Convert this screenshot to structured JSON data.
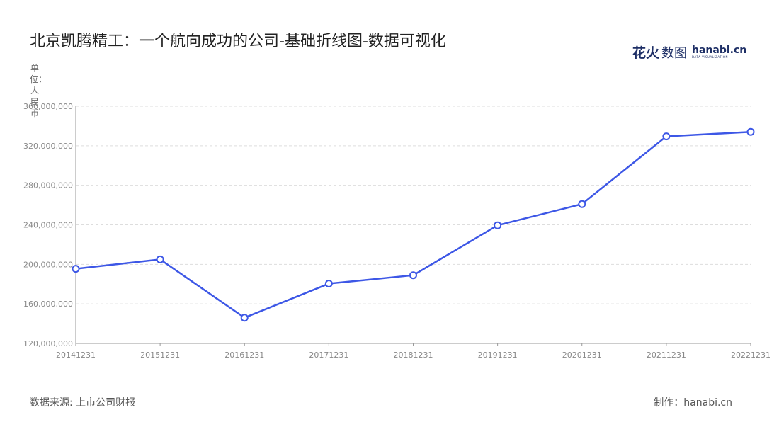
{
  "title": "北京凯腾精工：一个航向成功的公司-基础折线图-数据可视化",
  "logo": {
    "cn_main": "花火",
    "cn_sub": "数图",
    "en_main": "hanabi.cn",
    "en_sub": "DATA VISUALIZATION"
  },
  "unit_label": "单位：人民币",
  "footer": {
    "source": "数据来源: 上市公司财报",
    "credit": "制作：hanabi.cn"
  },
  "colors": {
    "line": "#3d57e6",
    "grid": "#dddddd",
    "axis": "#999999"
  },
  "chart_data": {
    "type": "line",
    "categories": [
      "20141231",
      "20151231",
      "20161231",
      "20171231",
      "20181231",
      "20191231",
      "20201231",
      "20211231",
      "20221231"
    ],
    "series": [
      {
        "values": [
          195500000,
          205000000,
          146000000,
          180500000,
          189000000,
          239500000,
          261000000,
          329500000,
          334000000
        ]
      }
    ],
    "ylim": [
      120000000,
      360000000
    ],
    "yticks": [
      120000000,
      160000000,
      200000000,
      240000000,
      280000000,
      320000000,
      360000000
    ],
    "ytick_labels": [
      "120,000,000",
      "160,000,000",
      "200,000,000",
      "240,000,000",
      "280,000,000",
      "320,000,000",
      "360,000,000"
    ],
    "grid": true,
    "legend": "none"
  }
}
